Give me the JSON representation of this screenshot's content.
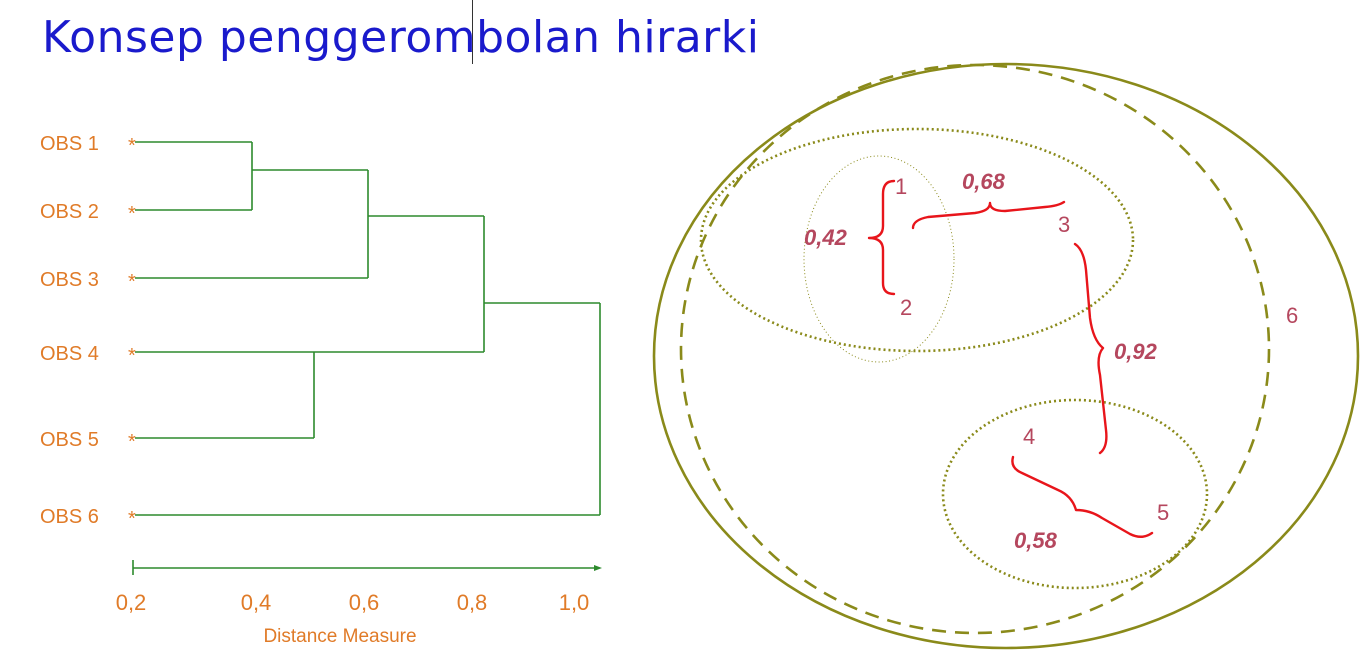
{
  "title": "Konsep penggerombolan hirarki",
  "dendrogram": {
    "observations": [
      "OBS 1",
      "OBS 2",
      "OBS 3",
      "OBS 4",
      "OBS 5",
      "OBS 6"
    ],
    "marker": "*",
    "axis_ticks": [
      "0,2",
      "0,4",
      "0,6",
      "0,8",
      "1,0"
    ],
    "axis_label": "Distance Measure",
    "merge_heights": [
      0.4,
      0.6,
      0.5,
      0.8,
      1.0
    ],
    "line_color": "#2d8a2d",
    "label_color": "#e07b28"
  },
  "cluster_diagram": {
    "points": [
      "1",
      "2",
      "3",
      "4",
      "5",
      "6"
    ],
    "distances": [
      "0,42",
      "0,68",
      "0,92",
      "0,58"
    ],
    "ellipse_color": "#8a8a1a",
    "brace_color": "#e8151b",
    "label_color": "#b5475e"
  }
}
